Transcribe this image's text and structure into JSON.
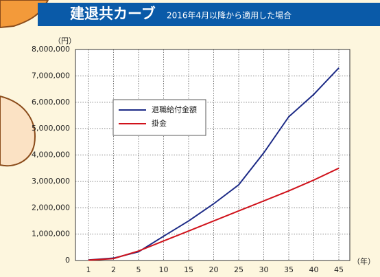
{
  "chart_data": {
    "type": "line",
    "title": "建退共カーブ",
    "subtitle": "2016年4月以降から適用した場合",
    "y_unit": "（円）",
    "x_unit": "（年）",
    "categories": [
      "1",
      "2",
      "5",
      "10",
      "15",
      "20",
      "25",
      "30",
      "35",
      "40",
      "45"
    ],
    "series": [
      {
        "name": "退職給付金額",
        "color": "#1c2a86",
        "values": [
          20000,
          90000,
          330000,
          920000,
          1500000,
          2150000,
          2870000,
          4080000,
          5450000,
          6300000,
          7300000
        ]
      },
      {
        "name": "掛金",
        "color": "#d0121b",
        "values": [
          12000,
          72000,
          360000,
          740000,
          1120000,
          1500000,
          1880000,
          2260000,
          2640000,
          3050000,
          3500000
        ]
      }
    ],
    "ylim": [
      0,
      8000000
    ],
    "yticks": [
      0,
      {
        "value": 1000000,
        "label": "1,000,000"
      },
      {
        "value": 2000000,
        "label": "2,000,000"
      },
      {
        "value": 3000000,
        "label": "3,000,000"
      },
      {
        "value": 4000000,
        "label": "4,000,000"
      },
      {
        "value": 5000000,
        "label": "5,000,000"
      },
      {
        "value": 6000000,
        "label": "6,000,000"
      },
      {
        "value": 7000000,
        "label": "7,000,000"
      },
      {
        "value": 8000000,
        "label": "8,000,000"
      }
    ],
    "grid": true,
    "legend": "upper left"
  }
}
